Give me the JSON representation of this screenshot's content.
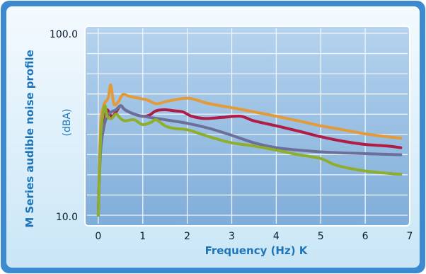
{
  "chart_data": {
    "type": "line",
    "title": "",
    "ylabel": "M Series audible noise profile",
    "ylabel_unit": "(dBA)",
    "xlabel": "Frequency (Hz) K",
    "xlim": [
      -0.3,
      7
    ],
    "ylim": [
      10,
      100
    ],
    "y_scale": "log",
    "x_ticks": [
      "0",
      "1",
      "2",
      "3",
      "4",
      "5",
      "6",
      "7"
    ],
    "y_ticks": [
      "10.0",
      "100.0"
    ],
    "grid": true,
    "series": [
      {
        "color": "#e39a38",
        "points": [
          [
            0.0,
            10
          ],
          [
            0.05,
            30
          ],
          [
            0.12,
            40
          ],
          [
            0.22,
            44
          ],
          [
            0.28,
            52
          ],
          [
            0.35,
            41
          ],
          [
            0.45,
            42
          ],
          [
            0.55,
            46
          ],
          [
            0.7,
            45
          ],
          [
            0.9,
            44
          ],
          [
            1.1,
            43
          ],
          [
            1.3,
            41
          ],
          [
            1.5,
            42
          ],
          [
            1.7,
            43
          ],
          [
            2.0,
            44
          ],
          [
            2.2,
            43
          ],
          [
            2.5,
            41
          ],
          [
            3.0,
            39
          ],
          [
            3.5,
            37
          ],
          [
            4.0,
            35
          ],
          [
            4.5,
            33
          ],
          [
            5.0,
            31
          ],
          [
            5.5,
            29.5
          ],
          [
            6.0,
            28
          ],
          [
            6.5,
            27
          ],
          [
            6.8,
            26.5
          ]
        ]
      },
      {
        "color": "#b01c45",
        "points": [
          [
            0.0,
            10
          ],
          [
            0.05,
            25
          ],
          [
            0.12,
            35
          ],
          [
            0.2,
            38
          ],
          [
            0.3,
            35
          ],
          [
            0.4,
            37
          ],
          [
            0.5,
            40
          ],
          [
            0.6,
            38
          ],
          [
            0.8,
            36
          ],
          [
            1.0,
            35
          ],
          [
            1.15,
            35.5
          ],
          [
            1.3,
            37.5
          ],
          [
            1.5,
            38
          ],
          [
            1.7,
            37.5
          ],
          [
            1.9,
            37
          ],
          [
            2.1,
            35
          ],
          [
            2.4,
            34
          ],
          [
            2.8,
            34.5
          ],
          [
            3.2,
            35
          ],
          [
            3.5,
            33
          ],
          [
            4.0,
            31
          ],
          [
            4.5,
            29
          ],
          [
            5.0,
            27
          ],
          [
            5.5,
            25.5
          ],
          [
            6.0,
            24.5
          ],
          [
            6.5,
            24
          ],
          [
            6.8,
            23.5
          ]
        ]
      },
      {
        "color": "#6b6f9a",
        "points": [
          [
            0.0,
            10
          ],
          [
            0.05,
            22
          ],
          [
            0.12,
            30
          ],
          [
            0.2,
            35
          ],
          [
            0.3,
            37
          ],
          [
            0.4,
            38
          ],
          [
            0.5,
            40
          ],
          [
            0.6,
            38
          ],
          [
            0.8,
            36
          ],
          [
            1.0,
            35
          ],
          [
            1.5,
            33.5
          ],
          [
            2.0,
            32
          ],
          [
            2.5,
            30
          ],
          [
            3.0,
            27.5
          ],
          [
            3.5,
            25
          ],
          [
            4.0,
            23.5
          ],
          [
            4.5,
            22.8
          ],
          [
            5.0,
            22.3
          ],
          [
            5.5,
            22
          ],
          [
            6.0,
            21.8
          ],
          [
            6.5,
            21.6
          ],
          [
            6.8,
            21.5
          ]
        ]
      },
      {
        "color": "#8fae2b",
        "points": [
          [
            0.0,
            10
          ],
          [
            0.05,
            26
          ],
          [
            0.1,
            35
          ],
          [
            0.15,
            40
          ],
          [
            0.2,
            35
          ],
          [
            0.3,
            34
          ],
          [
            0.4,
            36
          ],
          [
            0.5,
            34
          ],
          [
            0.6,
            33
          ],
          [
            0.8,
            33.5
          ],
          [
            1.0,
            31.5
          ],
          [
            1.2,
            32.5
          ],
          [
            1.3,
            33.5
          ],
          [
            1.5,
            31
          ],
          [
            1.7,
            30
          ],
          [
            2.0,
            29.5
          ],
          [
            2.3,
            28
          ],
          [
            2.6,
            26.5
          ],
          [
            3.0,
            25
          ],
          [
            3.5,
            24
          ],
          [
            4.0,
            22.8
          ],
          [
            4.5,
            21.5
          ],
          [
            5.0,
            20.5
          ],
          [
            5.3,
            19
          ],
          [
            5.6,
            18.2
          ],
          [
            6.0,
            17.5
          ],
          [
            6.5,
            17
          ],
          [
            6.8,
            16.8
          ]
        ]
      }
    ]
  }
}
